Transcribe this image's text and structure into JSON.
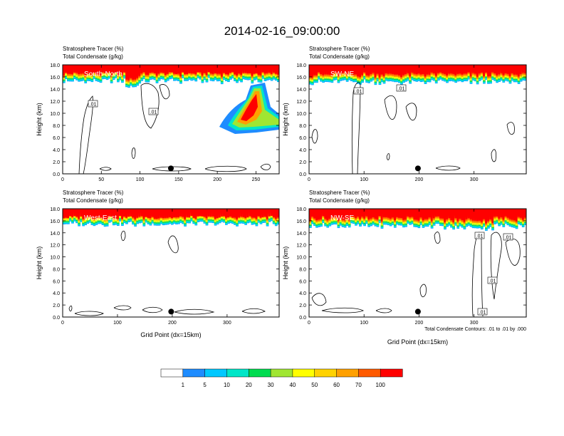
{
  "title": "2014-02-16_09:00:00",
  "footnote": "Total Condensate Contours: .01 to .01 by .000",
  "colors": {
    "levels": [
      "#ffffff",
      "#1e8cff",
      "#00c8ff",
      "#00e6c8",
      "#00dc50",
      "#1ee600",
      "#a0e632",
      "#ffff00",
      "#ffd200",
      "#ffa000",
      "#ff5a00",
      "#ff0000"
    ],
    "contour": "#000000",
    "axis": "#000000"
  },
  "colorbar": {
    "labels": [
      "1",
      "5",
      "10",
      "20",
      "30",
      "40",
      "50",
      "60",
      "70",
      "100"
    ]
  },
  "chart_data": [
    {
      "type": "heatmap",
      "subtitle_1": "Stratosphere Tracer   (%)",
      "subtitle_2": "Total Condensate   (g/kg)",
      "panel_label": "South-North",
      "xlabel": "",
      "ylabel": "Height (km)",
      "xlim": [
        0,
        280
      ],
      "ylim": [
        0,
        18
      ],
      "xticks": [
        0,
        50,
        100,
        150,
        200,
        250
      ],
      "yticks": [
        "0.0",
        "2.0",
        "4.0",
        "6.0",
        "8.0",
        "10.0",
        "12.0",
        "14.0",
        "16.0",
        "18.0"
      ],
      "marker_x": 140,
      "contour_labels": [
        ".01",
        ".01"
      ],
      "plume": true,
      "tropopause_km": 15.2
    },
    {
      "type": "heatmap",
      "subtitle_1": "Stratosphere Tracer   (%)",
      "subtitle_2": "Total Condensate   (g/kg)",
      "panel_label": "SW-NE",
      "xlabel": "",
      "ylabel": "Height (km)",
      "xlim": [
        0,
        395
      ],
      "ylim": [
        0,
        18
      ],
      "xticks": [
        0,
        100,
        200,
        300
      ],
      "yticks": [
        "0.0",
        "2.0",
        "4.0",
        "6.0",
        "8.0",
        "10.0",
        "12.0",
        "14.0",
        "16.0",
        "18.0"
      ],
      "marker_x": 198,
      "contour_labels": [
        ".01",
        ".01"
      ],
      "plume": false,
      "tropopause_km": 15.0
    },
    {
      "type": "heatmap",
      "subtitle_1": "Stratosphere Tracer   (%)",
      "subtitle_2": "Total Condensate   (g/kg)",
      "panel_label": "West-East",
      "xlabel": "Grid Point (dx=15km)",
      "ylabel": "Height (km)",
      "xlim": [
        0,
        395
      ],
      "ylim": [
        0,
        18
      ],
      "xticks": [
        0,
        100,
        200,
        300
      ],
      "yticks": [
        "0.0",
        "2.0",
        "4.0",
        "6.0",
        "8.0",
        "10.0",
        "12.0",
        "14.0",
        "16.0",
        "18.0"
      ],
      "marker_x": 198,
      "contour_labels": [],
      "plume": false,
      "tropopause_km": 15.3
    },
    {
      "type": "heatmap",
      "subtitle_1": "Stratosphere Tracer   (%)",
      "subtitle_2": "Total Condensate   (g/kg)",
      "panel_label": "NW-SE",
      "xlabel": "Grid Point (dx=15km)",
      "ylabel": "Height (km)",
      "xlim": [
        0,
        395
      ],
      "ylim": [
        0,
        18
      ],
      "xticks": [
        0,
        100,
        200,
        300
      ],
      "yticks": [
        "0.0",
        "2.0",
        "4.0",
        "6.0",
        "8.0",
        "10.0",
        "12.0",
        "14.0",
        "16.0",
        "18.0"
      ],
      "marker_x": 198,
      "contour_labels": [
        ".01",
        ".01",
        ".01",
        ".01"
      ],
      "plume": false,
      "tropopause_km": 15.0
    }
  ]
}
